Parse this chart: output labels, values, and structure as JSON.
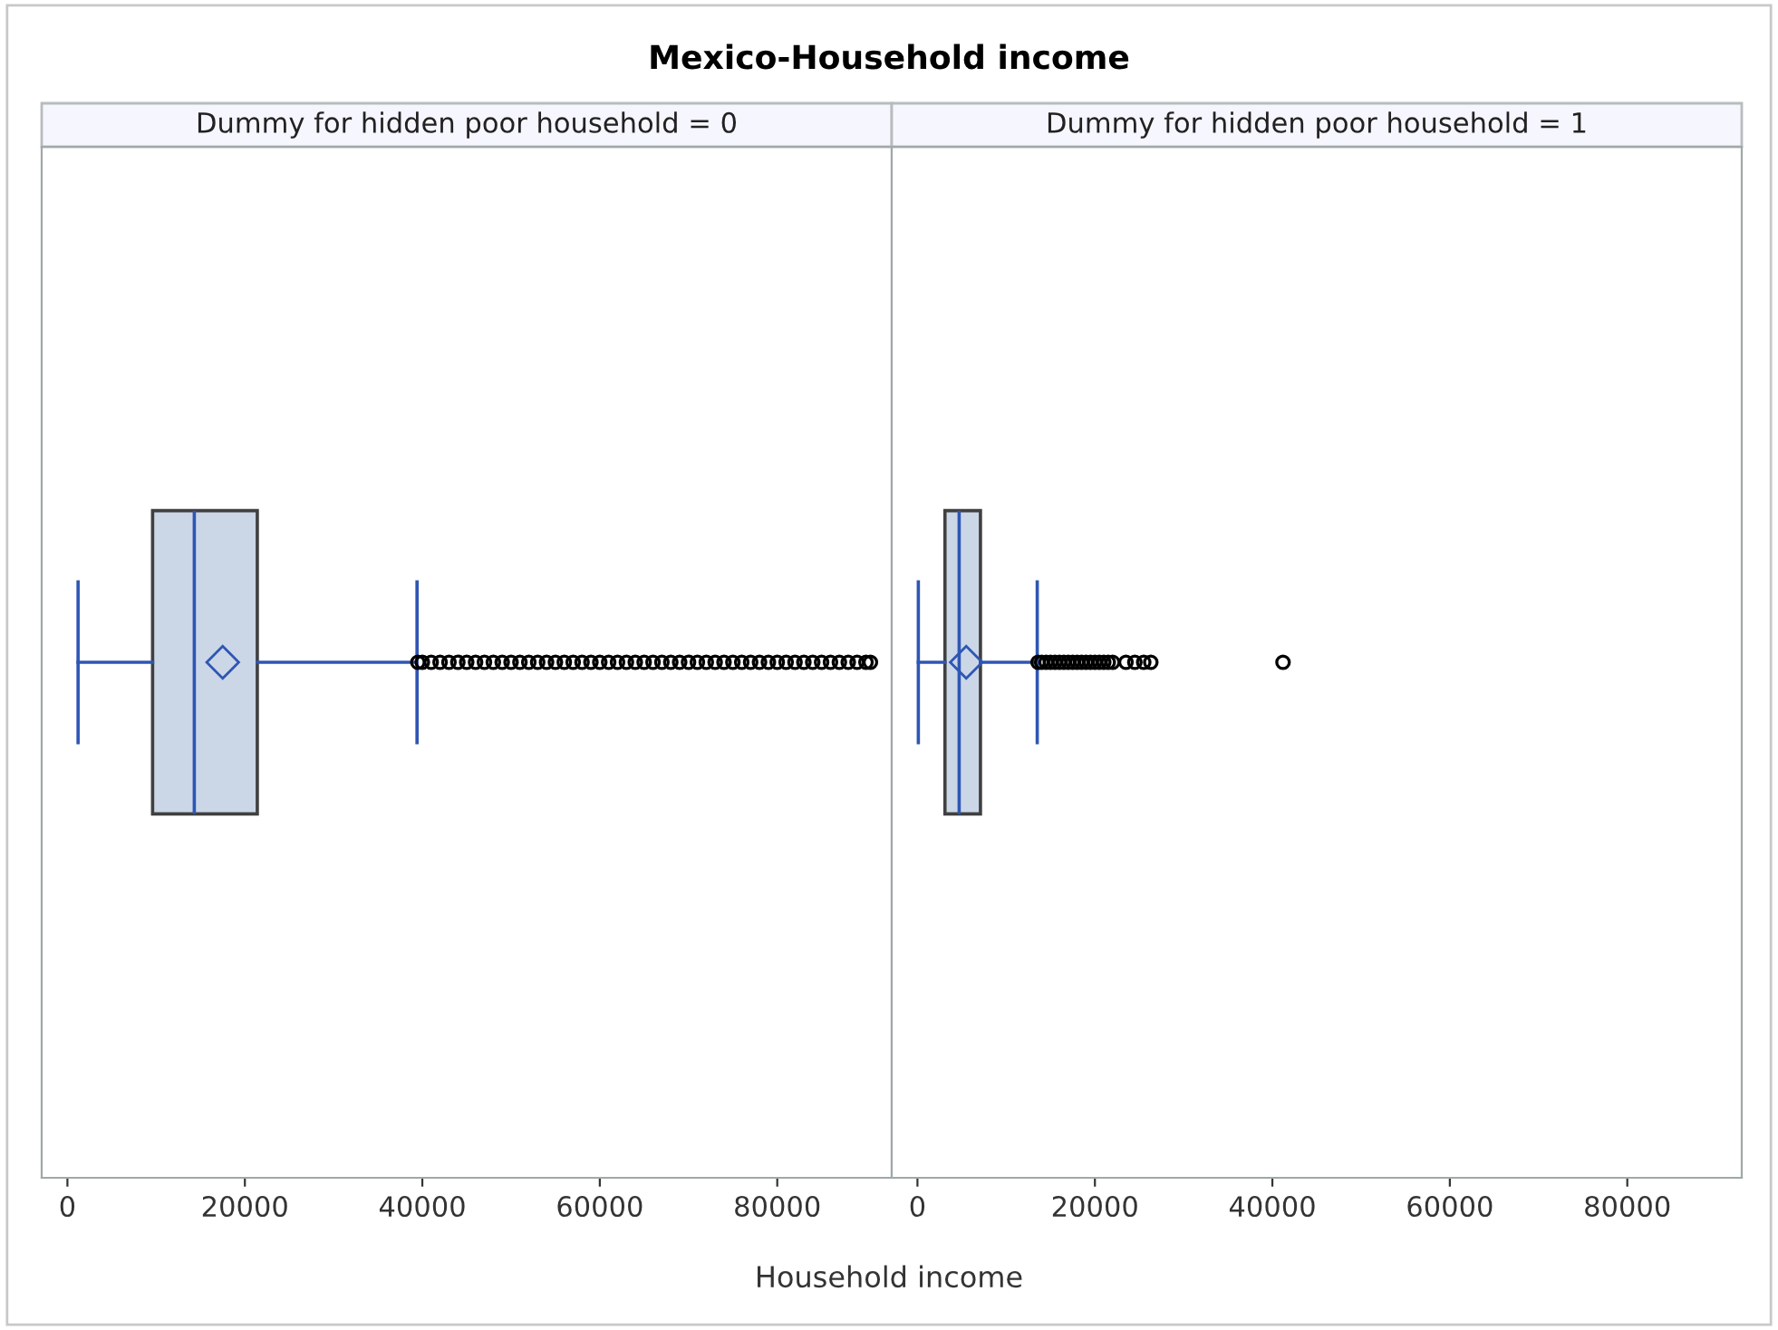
{
  "chart_data": [
    {
      "type": "box",
      "title": "Mexico-Household income",
      "subtitle": "Dummy for hidden poor household = 0",
      "xlabel": "Household income",
      "orientation": "horizontal",
      "categories": [
        null
      ],
      "tick_labels": "x",
      "grid": false,
      "color": "#cbd7e7",
      "xlim": [
        -2900,
        92900
      ],
      "xticks": [
        0,
        20000,
        40000,
        60000,
        80000
      ],
      "boxes": [
        {
          "low": 1200,
          "q1": 9600,
          "median": 14300,
          "q3": 21400,
          "high": 39400,
          "mean": 17500,
          "outliers": [
            39500,
            40000,
            41000,
            42000,
            43000,
            44000,
            45000,
            46000,
            47000,
            48000,
            49000,
            50000,
            51000,
            52000,
            53000,
            54000,
            55000,
            56000,
            57000,
            58000,
            59000,
            60000,
            61000,
            62000,
            63000,
            64000,
            65000,
            66000,
            67000,
            68000,
            69000,
            70000,
            71000,
            72000,
            73000,
            74000,
            75000,
            76000,
            77000,
            78000,
            79000,
            80000,
            81000,
            82000,
            83000,
            84000,
            85000,
            86000,
            87000,
            88000,
            89000,
            90000,
            90500
          ]
        }
      ]
    },
    {
      "type": "box",
      "subtitle": "Dummy for hidden poor household = 1",
      "orientation": "horizontal",
      "categories": [
        null
      ],
      "tick_labels": "x",
      "grid": false,
      "color": "#cbd7e7",
      "xlim": [
        -2900,
        92900
      ],
      "xticks": [
        0,
        20000,
        40000,
        60000,
        80000
      ],
      "boxes": [
        {
          "low": 100,
          "q1": 3100,
          "median": 4700,
          "q3": 7100,
          "high": 13500,
          "mean": 5500,
          "outliers": [
            13600,
            14000,
            14500,
            15000,
            15500,
            16000,
            16500,
            17000,
            17500,
            18000,
            18500,
            19000,
            19500,
            20000,
            20500,
            21000,
            21500,
            22000,
            23500,
            24500,
            25500,
            26300,
            41200
          ]
        }
      ]
    }
  ]
}
